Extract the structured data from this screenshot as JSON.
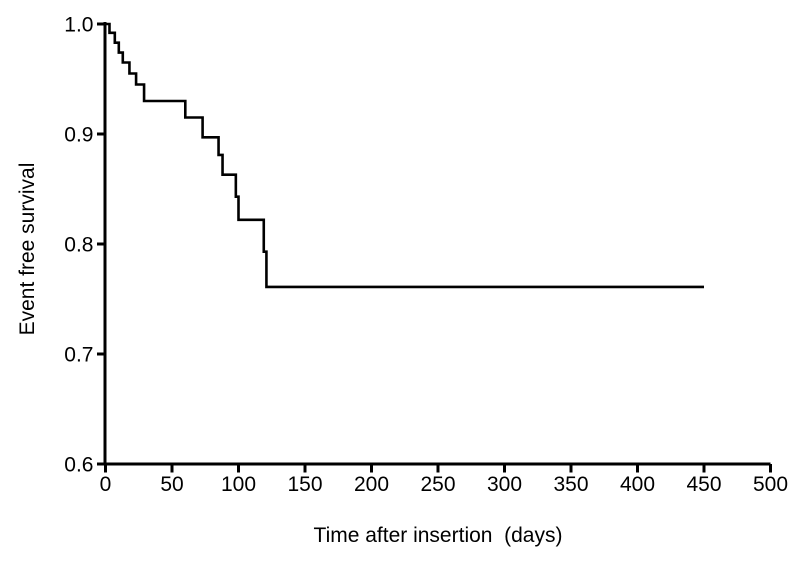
{
  "figure": {
    "background_color": "#ffffff",
    "ink_color": "#000000"
  },
  "chart_data": {
    "type": "line",
    "subtype": "kaplan-meier-step-curve",
    "title": "",
    "xlabel": "Time after insertion  (days)",
    "ylabel": "Event free survival",
    "xlim": [
      0,
      500
    ],
    "ylim": [
      0.6,
      1.0
    ],
    "x_ticks": [
      0,
      50,
      100,
      150,
      200,
      250,
      300,
      350,
      400,
      450,
      500
    ],
    "x_tick_labels": [
      "0",
      "50",
      "100",
      "150",
      "200",
      "250",
      "300",
      "350",
      "400",
      "450",
      "500"
    ],
    "y_ticks": [
      1.0,
      0.9,
      0.8,
      0.7,
      0.6
    ],
    "y_tick_labels": [
      "1.0",
      "0.9",
      "0.8",
      "0.7",
      "0.6"
    ],
    "grid": false,
    "legend": null,
    "series": [
      {
        "name": "Event free survival",
        "color": "#000000",
        "steps": [
          {
            "time": 0,
            "survival": 1.0
          },
          {
            "time": 3,
            "survival": 0.992
          },
          {
            "time": 7,
            "survival": 0.983
          },
          {
            "time": 10,
            "survival": 0.974
          },
          {
            "time": 13,
            "survival": 0.965
          },
          {
            "time": 18,
            "survival": 0.955
          },
          {
            "time": 23,
            "survival": 0.945
          },
          {
            "time": 29,
            "survival": 0.93
          },
          {
            "time": 60,
            "survival": 0.915
          },
          {
            "time": 73,
            "survival": 0.897
          },
          {
            "time": 85,
            "survival": 0.881
          },
          {
            "time": 88,
            "survival": 0.863
          },
          {
            "time": 98,
            "survival": 0.843
          },
          {
            "time": 100,
            "survival": 0.822
          },
          {
            "time": 119,
            "survival": 0.793
          },
          {
            "time": 121,
            "survival": 0.761
          }
        ],
        "end_time": 450,
        "final_survival": 0.761
      }
    ]
  }
}
